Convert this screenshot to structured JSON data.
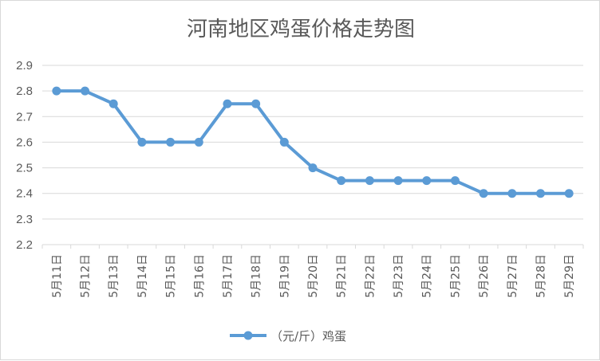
{
  "chart_data": {
    "type": "line",
    "title": "河南地区鸡蛋价格走势图",
    "xlabel": "",
    "ylabel": "",
    "categories": [
      "5月11日",
      "5月12日",
      "5月13日",
      "5月14日",
      "5月15日",
      "5月16日",
      "5月17日",
      "5月18日",
      "5月19日",
      "5月20日",
      "5月21日",
      "5月22日",
      "5月23日",
      "5月24日",
      "5月25日",
      "5月26日",
      "5月27日",
      "5月28日",
      "5月29日"
    ],
    "series": [
      {
        "name": "（元/斤）鸡蛋",
        "values": [
          2.8,
          2.8,
          2.75,
          2.6,
          2.6,
          2.6,
          2.75,
          2.75,
          2.6,
          2.5,
          2.45,
          2.45,
          2.45,
          2.45,
          2.45,
          2.4,
          2.4,
          2.4,
          2.4
        ]
      }
    ],
    "ylim": [
      2.2,
      2.9
    ],
    "yticks": [
      "2.2",
      "2.3",
      "2.4",
      "2.5",
      "2.6",
      "2.7",
      "2.8",
      "2.9"
    ],
    "grid": true,
    "legend": "bottom",
    "colors": {
      "line": "#5b9bd5",
      "grid": "#d9d9d9",
      "text": "#595959"
    }
  }
}
